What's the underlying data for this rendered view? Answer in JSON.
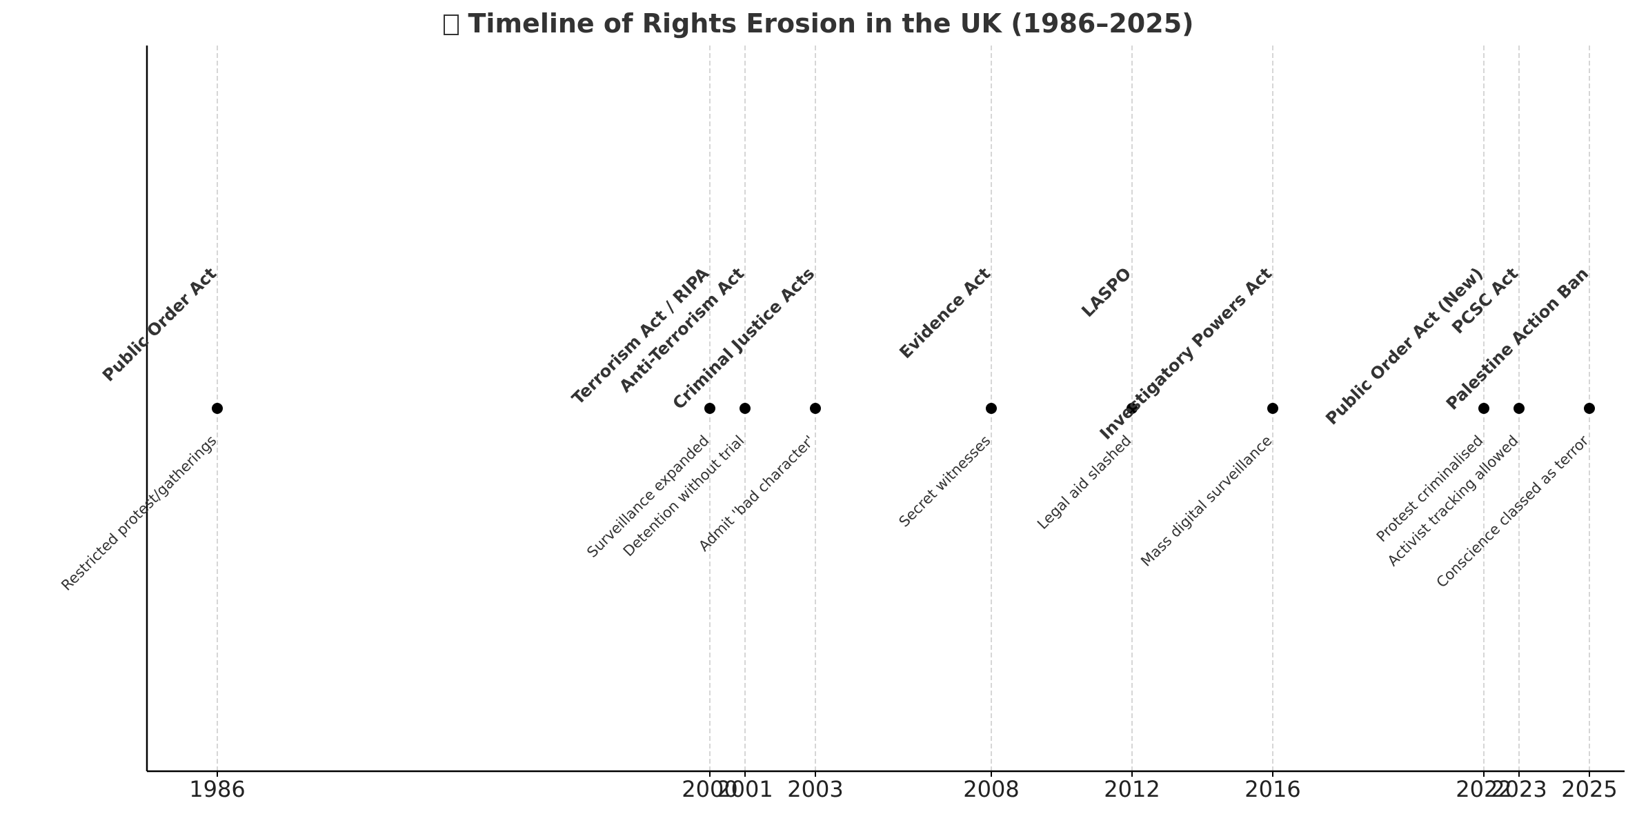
{
  "chart_data": {
    "type": "scatter",
    "title": "Timeline of Rights Erosion in the UK (1986–2025)",
    "title_icon": "unrendered-emoji-glyph",
    "xlabel": "",
    "ylabel": "",
    "xlim": [
      1984,
      2026
    ],
    "grid": "vertical dashed lines at each event year",
    "x_ticks": [
      "1986",
      "2000",
      "2001",
      "2003",
      "2008",
      "2012",
      "2016",
      "2022",
      "2023",
      "2025"
    ],
    "events": [
      {
        "year": 1986,
        "label": "Public Order Act",
        "description": "Restricted protest/gatherings"
      },
      {
        "year": 2000,
        "label": "Terrorism Act / RIPA",
        "description": "Surveillance expanded"
      },
      {
        "year": 2001,
        "label": "Anti-Terrorism Act",
        "description": "Detention without trial"
      },
      {
        "year": 2003,
        "label": "Criminal Justice Acts",
        "description": "Admit 'bad character'"
      },
      {
        "year": 2008,
        "label": "Evidence Act",
        "description": "Secret witnesses"
      },
      {
        "year": 2012,
        "label": "LASPO",
        "description": "Legal aid slashed"
      },
      {
        "year": 2016,
        "label": "Investigatory Powers Act",
        "description": "Mass digital surveillance"
      },
      {
        "year": 2022,
        "label": "Public Order Act (New)",
        "description": "Protest criminalised"
      },
      {
        "year": 2023,
        "label": "PCSC Act",
        "description": "Activist tracking allowed"
      },
      {
        "year": 2025,
        "label": "Palestine Action Ban",
        "description": "Conscience classed as terror"
      }
    ],
    "colors": {
      "marker": "#000000",
      "text": "#333333",
      "grid": "#c8c8c8"
    }
  }
}
